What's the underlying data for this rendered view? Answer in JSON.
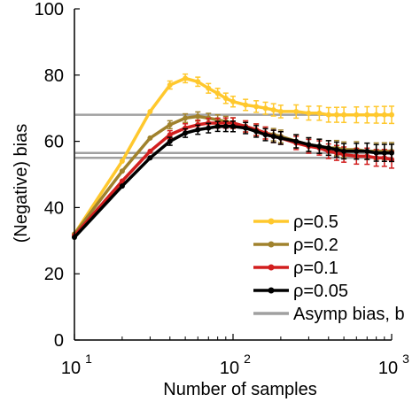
{
  "chart_data": {
    "type": "line",
    "xlabel": "Number of samples",
    "ylabel": "(Negative) bias",
    "xscale": "log",
    "xlim": [
      10,
      1000
    ],
    "ylim": [
      0,
      100
    ],
    "y_ticks": [
      0,
      20,
      40,
      60,
      80,
      100
    ],
    "x_ticks": [
      {
        "value": 10,
        "base": "10",
        "exp": "1"
      },
      {
        "value": 100,
        "base": "10",
        "exp": "2"
      },
      {
        "value": 1000,
        "base": "10",
        "exp": "3"
      }
    ],
    "grid": false,
    "legend_position": "bottom-right",
    "asymptotes": {
      "name": "Asymp bias, b",
      "color": "#a0a0a0",
      "values": [
        68,
        56.5,
        55
      ]
    },
    "x": [
      10,
      20,
      30,
      40,
      50,
      60,
      70,
      80,
      90,
      100,
      120,
      140,
      160,
      180,
      200,
      250,
      300,
      350,
      400,
      450,
      500,
      600,
      700,
      800,
      900,
      1000
    ],
    "series": [
      {
        "name": "ρ=0.5",
        "color": "#ffc82d",
        "values": [
          32,
          54,
          69,
          77,
          79,
          78,
          76,
          74.5,
          73,
          72,
          71,
          70.5,
          70,
          69.5,
          69,
          69,
          68.5,
          68.5,
          68,
          68,
          68,
          68,
          68,
          68,
          68,
          68
        ]
      },
      {
        "name": "ρ=0.2",
        "color": "#a0822d",
        "values": [
          32,
          51,
          61,
          65,
          67,
          67.5,
          67,
          66.5,
          66,
          65.5,
          64.5,
          63.5,
          62.5,
          62,
          61.5,
          60,
          59,
          58.5,
          58,
          58,
          57.5,
          57.5,
          57,
          57,
          57,
          57
        ]
      },
      {
        "name": "ρ=0.1",
        "color": "#d21e1e",
        "values": [
          31.5,
          48,
          57,
          62,
          64,
          65,
          65.5,
          65.5,
          65.5,
          65.5,
          64.5,
          63.5,
          62.5,
          61.5,
          61,
          59.5,
          58.5,
          58,
          57,
          56.5,
          56,
          55.5,
          55.5,
          55,
          55,
          54.5
        ]
      },
      {
        "name": "ρ=0.05",
        "color": "#000000",
        "values": [
          31,
          46.5,
          55,
          60,
          62.5,
          63.5,
          64,
          64.5,
          64.5,
          64.5,
          64,
          63,
          62,
          61.5,
          61,
          60,
          59,
          58.5,
          58,
          57.5,
          57,
          57,
          57,
          56.5,
          56.5,
          56.5
        ]
      }
    ]
  }
}
